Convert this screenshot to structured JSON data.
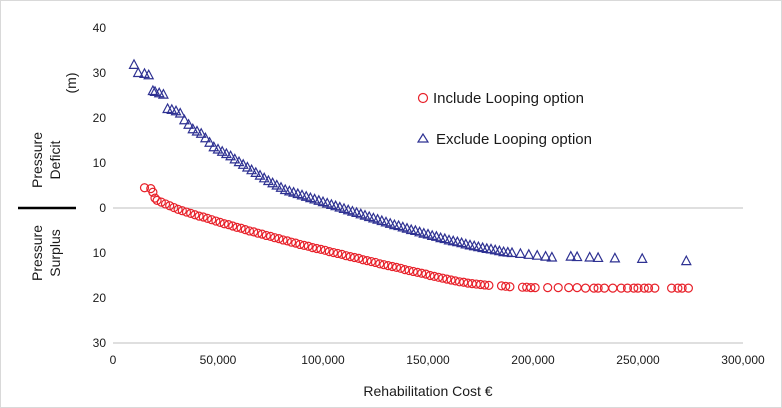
{
  "chart_data": {
    "type": "scatter",
    "xlabel": "Rehabilitation Cost €",
    "ylabel_unit": "(m)",
    "ylabel_upper": [
      "Pressure",
      "Deficit"
    ],
    "ylabel_lower": [
      "Pressure",
      "Surplus"
    ],
    "xlim": [
      0,
      300000
    ],
    "ylim": [
      -30,
      40
    ],
    "grid": false,
    "legend_position": "upper-right",
    "x_ticks": [
      {
        "value": 0,
        "label": "0"
      },
      {
        "value": 50000,
        "label": "50,000"
      },
      {
        "value": 100000,
        "label": "100,000"
      },
      {
        "value": 150000,
        "label": "150,000"
      },
      {
        "value": 200000,
        "label": "200,000"
      },
      {
        "value": 250000,
        "label": "250,000"
      },
      {
        "value": 300000,
        "label": "300,000"
      }
    ],
    "y_ticks": [
      {
        "value": 40,
        "label": "40"
      },
      {
        "value": 30,
        "label": "30"
      },
      {
        "value": 20,
        "label": "20"
      },
      {
        "value": 10,
        "label": "10"
      },
      {
        "value": 0,
        "label": "0"
      },
      {
        "value": -10,
        "label": "10"
      },
      {
        "value": -20,
        "label": "20"
      },
      {
        "value": -30,
        "label": "30"
      }
    ],
    "series": [
      {
        "name": "Include Looping option",
        "marker": "circle",
        "color": "#e8212a",
        "x": [
          15000,
          18000,
          19000,
          20000,
          21000,
          23000,
          25000,
          27000,
          29000,
          31000,
          33000,
          35000,
          37000,
          39000,
          41000,
          43000,
          45000,
          47000,
          49000,
          51000,
          53000,
          55000,
          57000,
          59000,
          61000,
          63000,
          65000,
          67000,
          69000,
          71000,
          73000,
          75000,
          77000,
          79000,
          81000,
          83000,
          85000,
          87000,
          89000,
          91000,
          93000,
          95000,
          97000,
          99000,
          101000,
          103000,
          105000,
          107000,
          109000,
          111000,
          113000,
          115000,
          117000,
          119000,
          121000,
          123000,
          125000,
          127000,
          129000,
          131000,
          133000,
          135000,
          137000,
          139000,
          141000,
          143000,
          145000,
          147000,
          149000,
          151000,
          153000,
          155000,
          157000,
          159000,
          161000,
          163000,
          165000,
          167000,
          169000,
          171000,
          173000,
          175000,
          177000,
          179000,
          185000,
          187000,
          189000,
          195000,
          197000,
          199000,
          201000,
          207000,
          212000,
          217000,
          221000,
          225000,
          229000,
          231000,
          234000,
          238000,
          242000,
          245000,
          248000,
          250000,
          253000,
          255000,
          258000,
          266000,
          269000,
          271000,
          274000
        ],
        "y": [
          4.5,
          4.3,
          3.5,
          2.2,
          1.7,
          1.3,
          0.9,
          0.5,
          0.1,
          -0.3,
          -0.6,
          -0.9,
          -1.2,
          -1.5,
          -1.8,
          -2.0,
          -2.3,
          -2.6,
          -2.9,
          -3.2,
          -3.5,
          -3.7,
          -4.0,
          -4.3,
          -4.5,
          -4.8,
          -5.1,
          -5.3,
          -5.6,
          -5.8,
          -6.1,
          -6.3,
          -6.6,
          -6.8,
          -7.1,
          -7.3,
          -7.6,
          -7.8,
          -8.1,
          -8.3,
          -8.5,
          -8.8,
          -9.0,
          -9.2,
          -9.4,
          -9.7,
          -9.9,
          -10.1,
          -10.3,
          -10.6,
          -10.8,
          -11.0,
          -11.2,
          -11.5,
          -11.7,
          -11.9,
          -12.1,
          -12.4,
          -12.6,
          -12.8,
          -13.0,
          -13.2,
          -13.4,
          -13.7,
          -13.9,
          -14.1,
          -14.3,
          -14.5,
          -14.7,
          -15.0,
          -15.2,
          -15.4,
          -15.6,
          -15.8,
          -16.0,
          -16.2,
          -16.4,
          -16.5,
          -16.7,
          -16.8,
          -16.9,
          -17.0,
          -17.1,
          -17.2,
          -17.3,
          -17.4,
          -17.5,
          -17.6,
          -17.6,
          -17.7,
          -17.7,
          -17.7,
          -17.7,
          -17.7,
          -17.7,
          -17.8,
          -17.8,
          -17.8,
          -17.8,
          -17.8,
          -17.8,
          -17.8,
          -17.8,
          -17.8,
          -17.8,
          -17.8,
          -17.8,
          -17.8,
          -17.8,
          -17.8,
          -17.8
        ]
      },
      {
        "name": "Exclude Looping option",
        "marker": "triangle",
        "color": "#2e3192",
        "x": [
          10000,
          12000,
          15000,
          17000,
          19000,
          20000,
          22000,
          24000,
          26000,
          28000,
          30000,
          32000,
          34000,
          36000,
          38000,
          40000,
          42000,
          44000,
          46000,
          48000,
          50000,
          52000,
          54000,
          56000,
          58000,
          60000,
          62000,
          64000,
          66000,
          68000,
          70000,
          72000,
          74000,
          76000,
          78000,
          80000,
          82000,
          84000,
          86000,
          88000,
          90000,
          92000,
          94000,
          96000,
          98000,
          100000,
          102000,
          104000,
          106000,
          108000,
          110000,
          112000,
          114000,
          116000,
          118000,
          120000,
          122000,
          124000,
          126000,
          128000,
          130000,
          132000,
          134000,
          136000,
          138000,
          140000,
          142000,
          144000,
          146000,
          148000,
          150000,
          152000,
          154000,
          156000,
          158000,
          160000,
          162000,
          164000,
          166000,
          168000,
          170000,
          172000,
          174000,
          176000,
          178000,
          180000,
          182000,
          184000,
          186000,
          188000,
          190000,
          194000,
          198000,
          202000,
          206000,
          209000,
          218000,
          221000,
          227000,
          231000,
          239000,
          252000,
          273000
        ],
        "y": [
          31.8,
          30.0,
          29.8,
          29.5,
          26.0,
          25.8,
          25.5,
          25.2,
          22.0,
          21.8,
          21.5,
          21.0,
          19.5,
          18.5,
          17.5,
          17.0,
          16.5,
          15.5,
          14.5,
          13.5,
          13.0,
          12.5,
          12.0,
          11.5,
          10.8,
          10.2,
          9.6,
          9.0,
          8.4,
          7.8,
          7.2,
          6.6,
          6.0,
          5.5,
          5.0,
          4.5,
          4.0,
          3.7,
          3.4,
          3.1,
          2.8,
          2.5,
          2.2,
          1.9,
          1.6,
          1.3,
          1.0,
          0.7,
          0.4,
          0.1,
          -0.2,
          -0.5,
          -0.8,
          -1.1,
          -1.4,
          -1.7,
          -2.0,
          -2.3,
          -2.6,
          -2.9,
          -3.2,
          -3.5,
          -3.8,
          -4.0,
          -4.3,
          -4.6,
          -4.9,
          -5.1,
          -5.4,
          -5.7,
          -5.9,
          -6.2,
          -6.4,
          -6.7,
          -6.9,
          -7.2,
          -7.4,
          -7.6,
          -7.8,
          -8.1,
          -8.3,
          -8.5,
          -8.7,
          -8.9,
          -9.1,
          -9.2,
          -9.4,
          -9.6,
          -9.8,
          -9.9,
          -10.0,
          -10.2,
          -10.4,
          -10.6,
          -10.8,
          -11.0,
          -10.8,
          -10.9,
          -11.0,
          -11.1,
          -11.2,
          -11.3,
          -11.8
        ]
      }
    ]
  }
}
